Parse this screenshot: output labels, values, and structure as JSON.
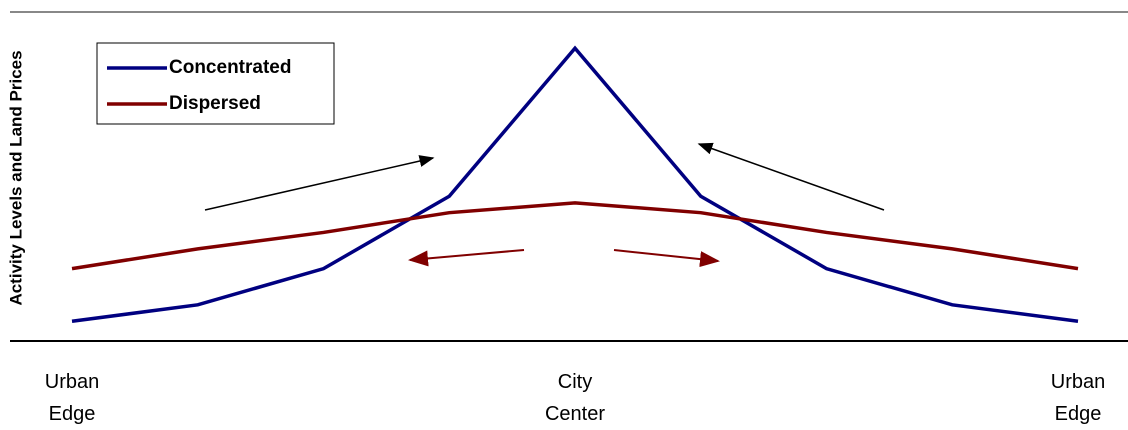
{
  "chart_data": {
    "type": "line",
    "y_label": "Activity Levels and Land Prices",
    "categories": [
      "Urban Edge",
      null,
      null,
      null,
      "City Center",
      null,
      null,
      null,
      "Urban Edge"
    ],
    "series": [
      {
        "name": "Concentrated",
        "color": "#000080",
        "values": [
          6,
          11,
          22,
          44,
          89,
          44,
          22,
          11,
          6
        ]
      },
      {
        "name": "Dispersed",
        "color": "#800000",
        "values": [
          22,
          28,
          33,
          39,
          42,
          39,
          33,
          28,
          22
        ]
      }
    ],
    "ylim": [
      0,
      100
    ],
    "legend": "upper left"
  }
}
